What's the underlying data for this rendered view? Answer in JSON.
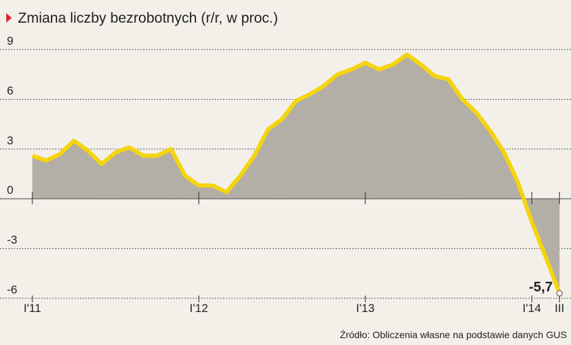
{
  "chart_data": {
    "type": "area",
    "title": "Zmiana liczby bezrobotnych (r/r, w proc.)",
    "source": "Źródło: Obliczenia własne na podstawie danych GUS",
    "categories": [
      "I'11",
      null,
      null,
      null,
      null,
      null,
      null,
      null,
      null,
      null,
      null,
      null,
      "I'12",
      null,
      null,
      null,
      null,
      null,
      null,
      null,
      null,
      null,
      null,
      null,
      "I'13",
      null,
      null,
      null,
      null,
      null,
      null,
      null,
      null,
      null,
      null,
      null,
      "I'14",
      null,
      "III"
    ],
    "series": [
      {
        "name": "Zmiana liczby bezrobotnych",
        "color": "#f5d40f",
        "fill": "#b3aea6",
        "values": [
          2.6,
          2.3,
          2.7,
          3.5,
          2.9,
          2.1,
          2.8,
          3.1,
          2.6,
          2.6,
          3.0,
          1.4,
          0.8,
          0.8,
          0.4,
          1.4,
          2.6,
          4.2,
          4.8,
          5.9,
          6.3,
          6.8,
          7.5,
          7.8,
          8.2,
          7.8,
          8.1,
          8.7,
          8.1,
          7.4,
          7.2,
          6.0,
          5.2,
          4.1,
          2.8,
          1.0,
          -1.4,
          -3.5,
          -5.7
        ],
        "value_labels": [
          null,
          null,
          null,
          null,
          null,
          null,
          null,
          null,
          null,
          null,
          null,
          null,
          null,
          null,
          null,
          null,
          null,
          null,
          null,
          null,
          null,
          null,
          null,
          null,
          null,
          null,
          null,
          null,
          null,
          null,
          null,
          null,
          null,
          null,
          null,
          null,
          null,
          null,
          "-5,7"
        ]
      }
    ],
    "ylim": [
      -6,
      9.5
    ],
    "yticks": [
      9,
      6,
      3,
      0,
      -3,
      -6
    ],
    "grid": true
  }
}
